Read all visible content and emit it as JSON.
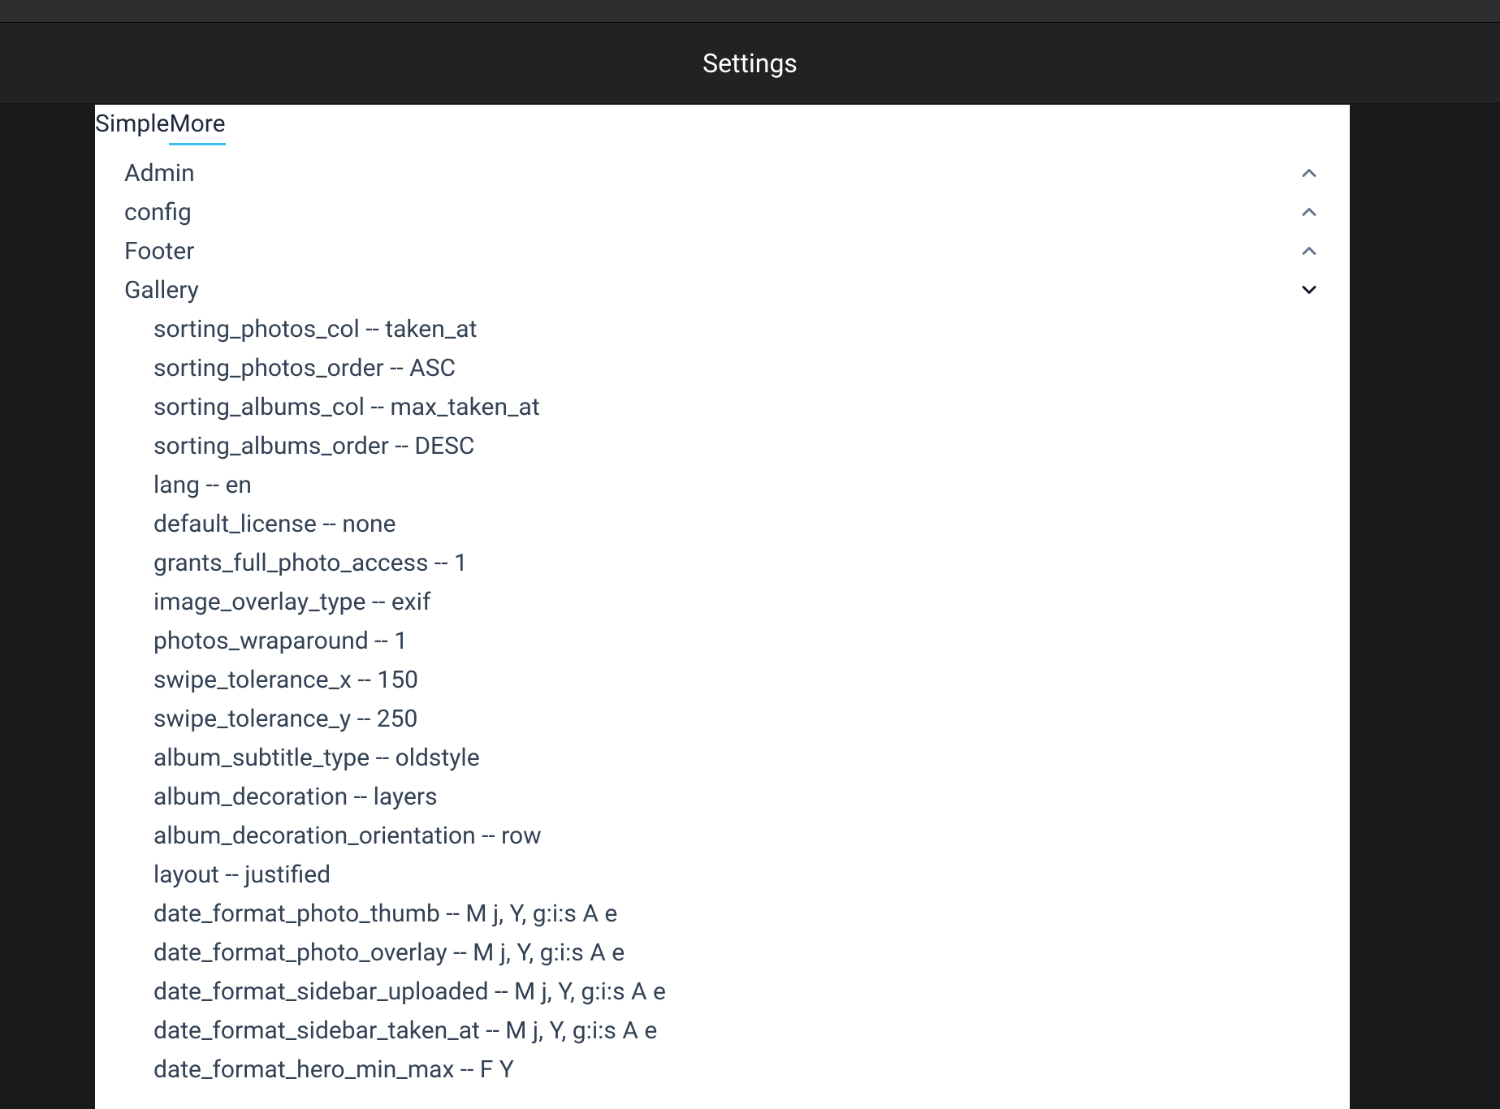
{
  "header": {
    "title": "Settings"
  },
  "tabs": [
    {
      "label": "Simple",
      "active": false
    },
    {
      "label": "More",
      "active": true
    }
  ],
  "colors": {
    "page_bg": "#1a1a1a",
    "header_bg": "#222222",
    "panel_bg": "#ffffff",
    "text_dark": "#334155",
    "accent": "#38bdf8",
    "chevron_collapsed": "#64748b",
    "chevron_expanded": "#0f172a"
  },
  "sections": [
    {
      "label": "Admin",
      "expanded": false,
      "items": []
    },
    {
      "label": "config",
      "expanded": false,
      "items": []
    },
    {
      "label": "Footer",
      "expanded": false,
      "items": []
    },
    {
      "label": "Gallery",
      "expanded": true,
      "items": [
        {
          "key": "sorting_photos_col",
          "value": "taken_at"
        },
        {
          "key": "sorting_photos_order",
          "value": "ASC"
        },
        {
          "key": "sorting_albums_col",
          "value": "max_taken_at"
        },
        {
          "key": "sorting_albums_order",
          "value": "DESC"
        },
        {
          "key": "lang",
          "value": "en"
        },
        {
          "key": "default_license",
          "value": "none"
        },
        {
          "key": "grants_full_photo_access",
          "value": "1"
        },
        {
          "key": "image_overlay_type",
          "value": "exif"
        },
        {
          "key": "photos_wraparound",
          "value": "1"
        },
        {
          "key": "swipe_tolerance_x",
          "value": "150"
        },
        {
          "key": "swipe_tolerance_y",
          "value": "250"
        },
        {
          "key": "album_subtitle_type",
          "value": "oldstyle"
        },
        {
          "key": "album_decoration",
          "value": "layers"
        },
        {
          "key": "album_decoration_orientation",
          "value": "row"
        },
        {
          "key": "layout",
          "value": "justified"
        },
        {
          "key": "date_format_photo_thumb",
          "value": "M j, Y, g:i:s A e"
        },
        {
          "key": "date_format_photo_overlay",
          "value": "M j, Y, g:i:s A e"
        },
        {
          "key": "date_format_sidebar_uploaded",
          "value": "M j, Y, g:i:s A e"
        },
        {
          "key": "date_format_sidebar_taken_at",
          "value": "M j, Y, g:i:s A e"
        },
        {
          "key": "date_format_hero_min_max",
          "value": "F Y"
        }
      ]
    }
  ]
}
